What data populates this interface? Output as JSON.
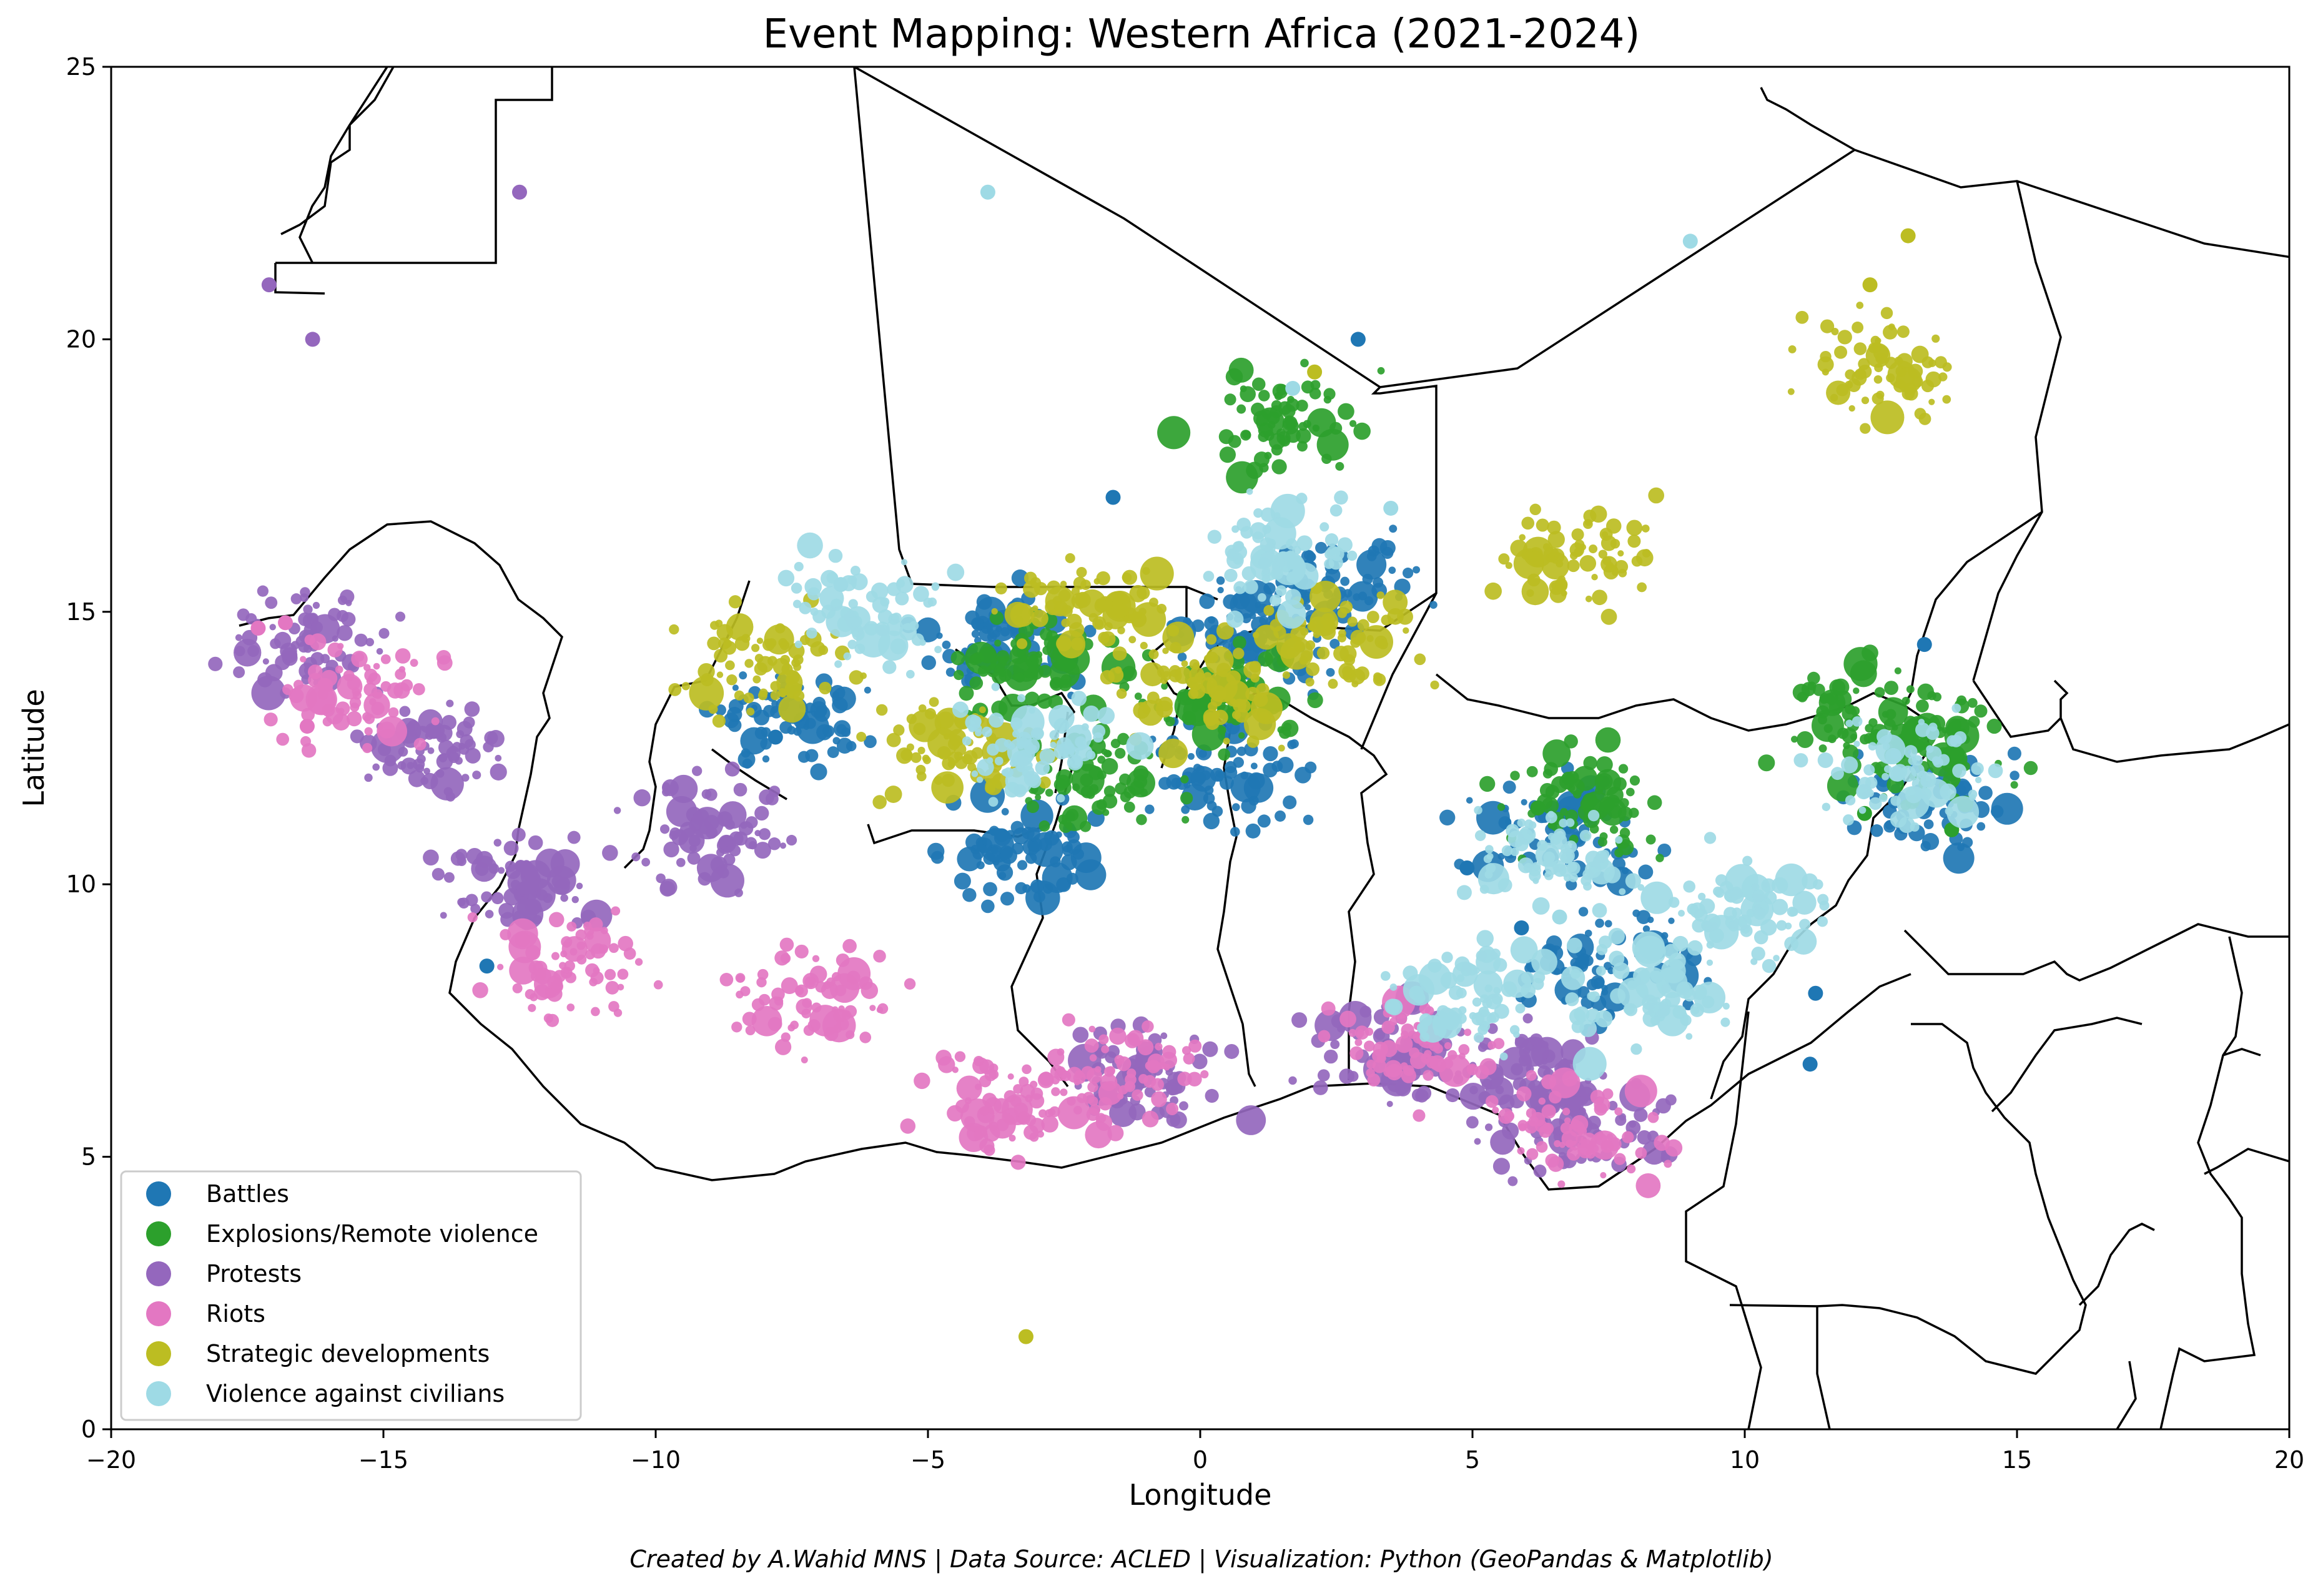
{
  "title": "Event Mapping: Western Africa (2021-2024)",
  "xlabel": "Longitude",
  "ylabel": "Latitude",
  "caption": "Created by A.Wahid MNS | Data Source: ACLED | Visualization: Python (GeoPandas & Matplotlib)",
  "chart_data": {
    "type": "scatter",
    "title": "Event Mapping: Western Africa (2021-2024)",
    "xlabel": "Longitude",
    "ylabel": "Latitude",
    "xlim": [
      -20,
      20
    ],
    "ylim": [
      0,
      25
    ],
    "xticks": [
      -20,
      -15,
      -10,
      -5,
      0,
      5,
      10,
      15,
      20
    ],
    "yticks": [
      0,
      5,
      10,
      15,
      20,
      25
    ],
    "xtick_labels": [
      "−20",
      "−15",
      "−10",
      "−5",
      "0",
      "5",
      "10",
      "15",
      "20"
    ],
    "ytick_labels": [
      "0",
      "5",
      "10",
      "15",
      "20",
      "25"
    ],
    "grid": false,
    "legend_position": "lower-left",
    "series": [
      {
        "name": "Battles",
        "color": "#1f77b4",
        "clusters": [
          [
            13.5,
            11.5
          ],
          [
            6.5,
            11
          ],
          [
            -3.5,
            14.5
          ],
          [
            1,
            14.5
          ],
          [
            -3.5,
            10.5
          ],
          [
            0.5,
            12
          ],
          [
            2.5,
            15.5
          ],
          [
            7.5,
            8.5
          ],
          [
            -7.5,
            13
          ]
        ],
        "points": [
          [
            2.9,
            20.0
          ],
          [
            11.3,
            8.0
          ],
          [
            11.2,
            6.7
          ],
          [
            -13.1,
            8.5
          ],
          [
            13.3,
            14.4
          ],
          [
            -1.6,
            17.1
          ],
          [
            -7.8,
            12.7
          ],
          [
            5.9,
            9.2
          ],
          [
            4.9,
            10.3
          ]
        ]
      },
      {
        "name": "Explosions/Remote violence",
        "color": "#2ca02c",
        "clusters": [
          [
            13.5,
            12.5
          ],
          [
            7,
            11.5
          ],
          [
            -3,
            14
          ],
          [
            0.5,
            13.5
          ],
          [
            12,
            13
          ],
          [
            1.5,
            18.5
          ],
          [
            -2,
            12
          ]
        ],
        "points": [
          [
            13.9,
            12.4
          ],
          [
            6.2,
            11.4
          ],
          [
            13.8,
            11.0
          ],
          [
            12.2,
            11.3
          ]
        ]
      },
      {
        "name": "Protests",
        "color": "#9467bd",
        "clusters": [
          [
            -16.5,
            14.5
          ],
          [
            -14,
            12.5
          ],
          [
            -9,
            11
          ],
          [
            -1,
            6.5
          ],
          [
            6,
            6.5
          ],
          [
            7,
            5.5
          ],
          [
            -12.5,
            10
          ],
          [
            3.5,
            7
          ]
        ],
        "points": [
          [
            -17.1,
            21.0
          ],
          [
            -12.5,
            22.7
          ],
          [
            -16.3,
            20.0
          ]
        ]
      },
      {
        "name": "Riots",
        "color": "#e377c2",
        "clusters": [
          [
            -15.5,
            13.5
          ],
          [
            -11.5,
            8.5
          ],
          [
            -3.5,
            6
          ],
          [
            -1.5,
            6.5
          ],
          [
            4,
            7
          ],
          [
            7,
            5.5
          ],
          [
            -7,
            8
          ]
        ],
        "points": [
          [
            -17.3,
            14.7
          ],
          [
            -16.8,
            14.8
          ],
          [
            -16.4,
            12.9
          ]
        ]
      },
      {
        "name": "Strategic developments",
        "color": "#bcbd22",
        "clusters": [
          [
            -4.5,
            12.5
          ],
          [
            0,
            13.5
          ],
          [
            2.5,
            14.5
          ],
          [
            -2,
            15
          ],
          [
            7,
            16
          ],
          [
            12.5,
            19.5
          ],
          [
            -8,
            14
          ]
        ],
        "points": [
          [
            -3.2,
            1.7
          ],
          [
            13.0,
            21.9
          ],
          [
            12.3,
            21.0
          ],
          [
            2.1,
            19.4
          ]
        ]
      },
      {
        "name": "Violence against civilians",
        "color": "#9edae5",
        "clusters": [
          [
            6.5,
            10.5
          ],
          [
            1.5,
            16
          ],
          [
            -6,
            15
          ],
          [
            8,
            8
          ],
          [
            13,
            12
          ],
          [
            -3,
            12.5
          ],
          [
            5,
            8
          ],
          [
            10,
            9.5
          ]
        ],
        "points": [
          [
            6.6,
            9.4
          ],
          [
            -6.6,
            15.5
          ],
          [
            3.5,
            16.9
          ],
          [
            1.7,
            19.1
          ],
          [
            -3.9,
            22.7
          ],
          [
            9.0,
            21.8
          ]
        ]
      }
    ]
  }
}
